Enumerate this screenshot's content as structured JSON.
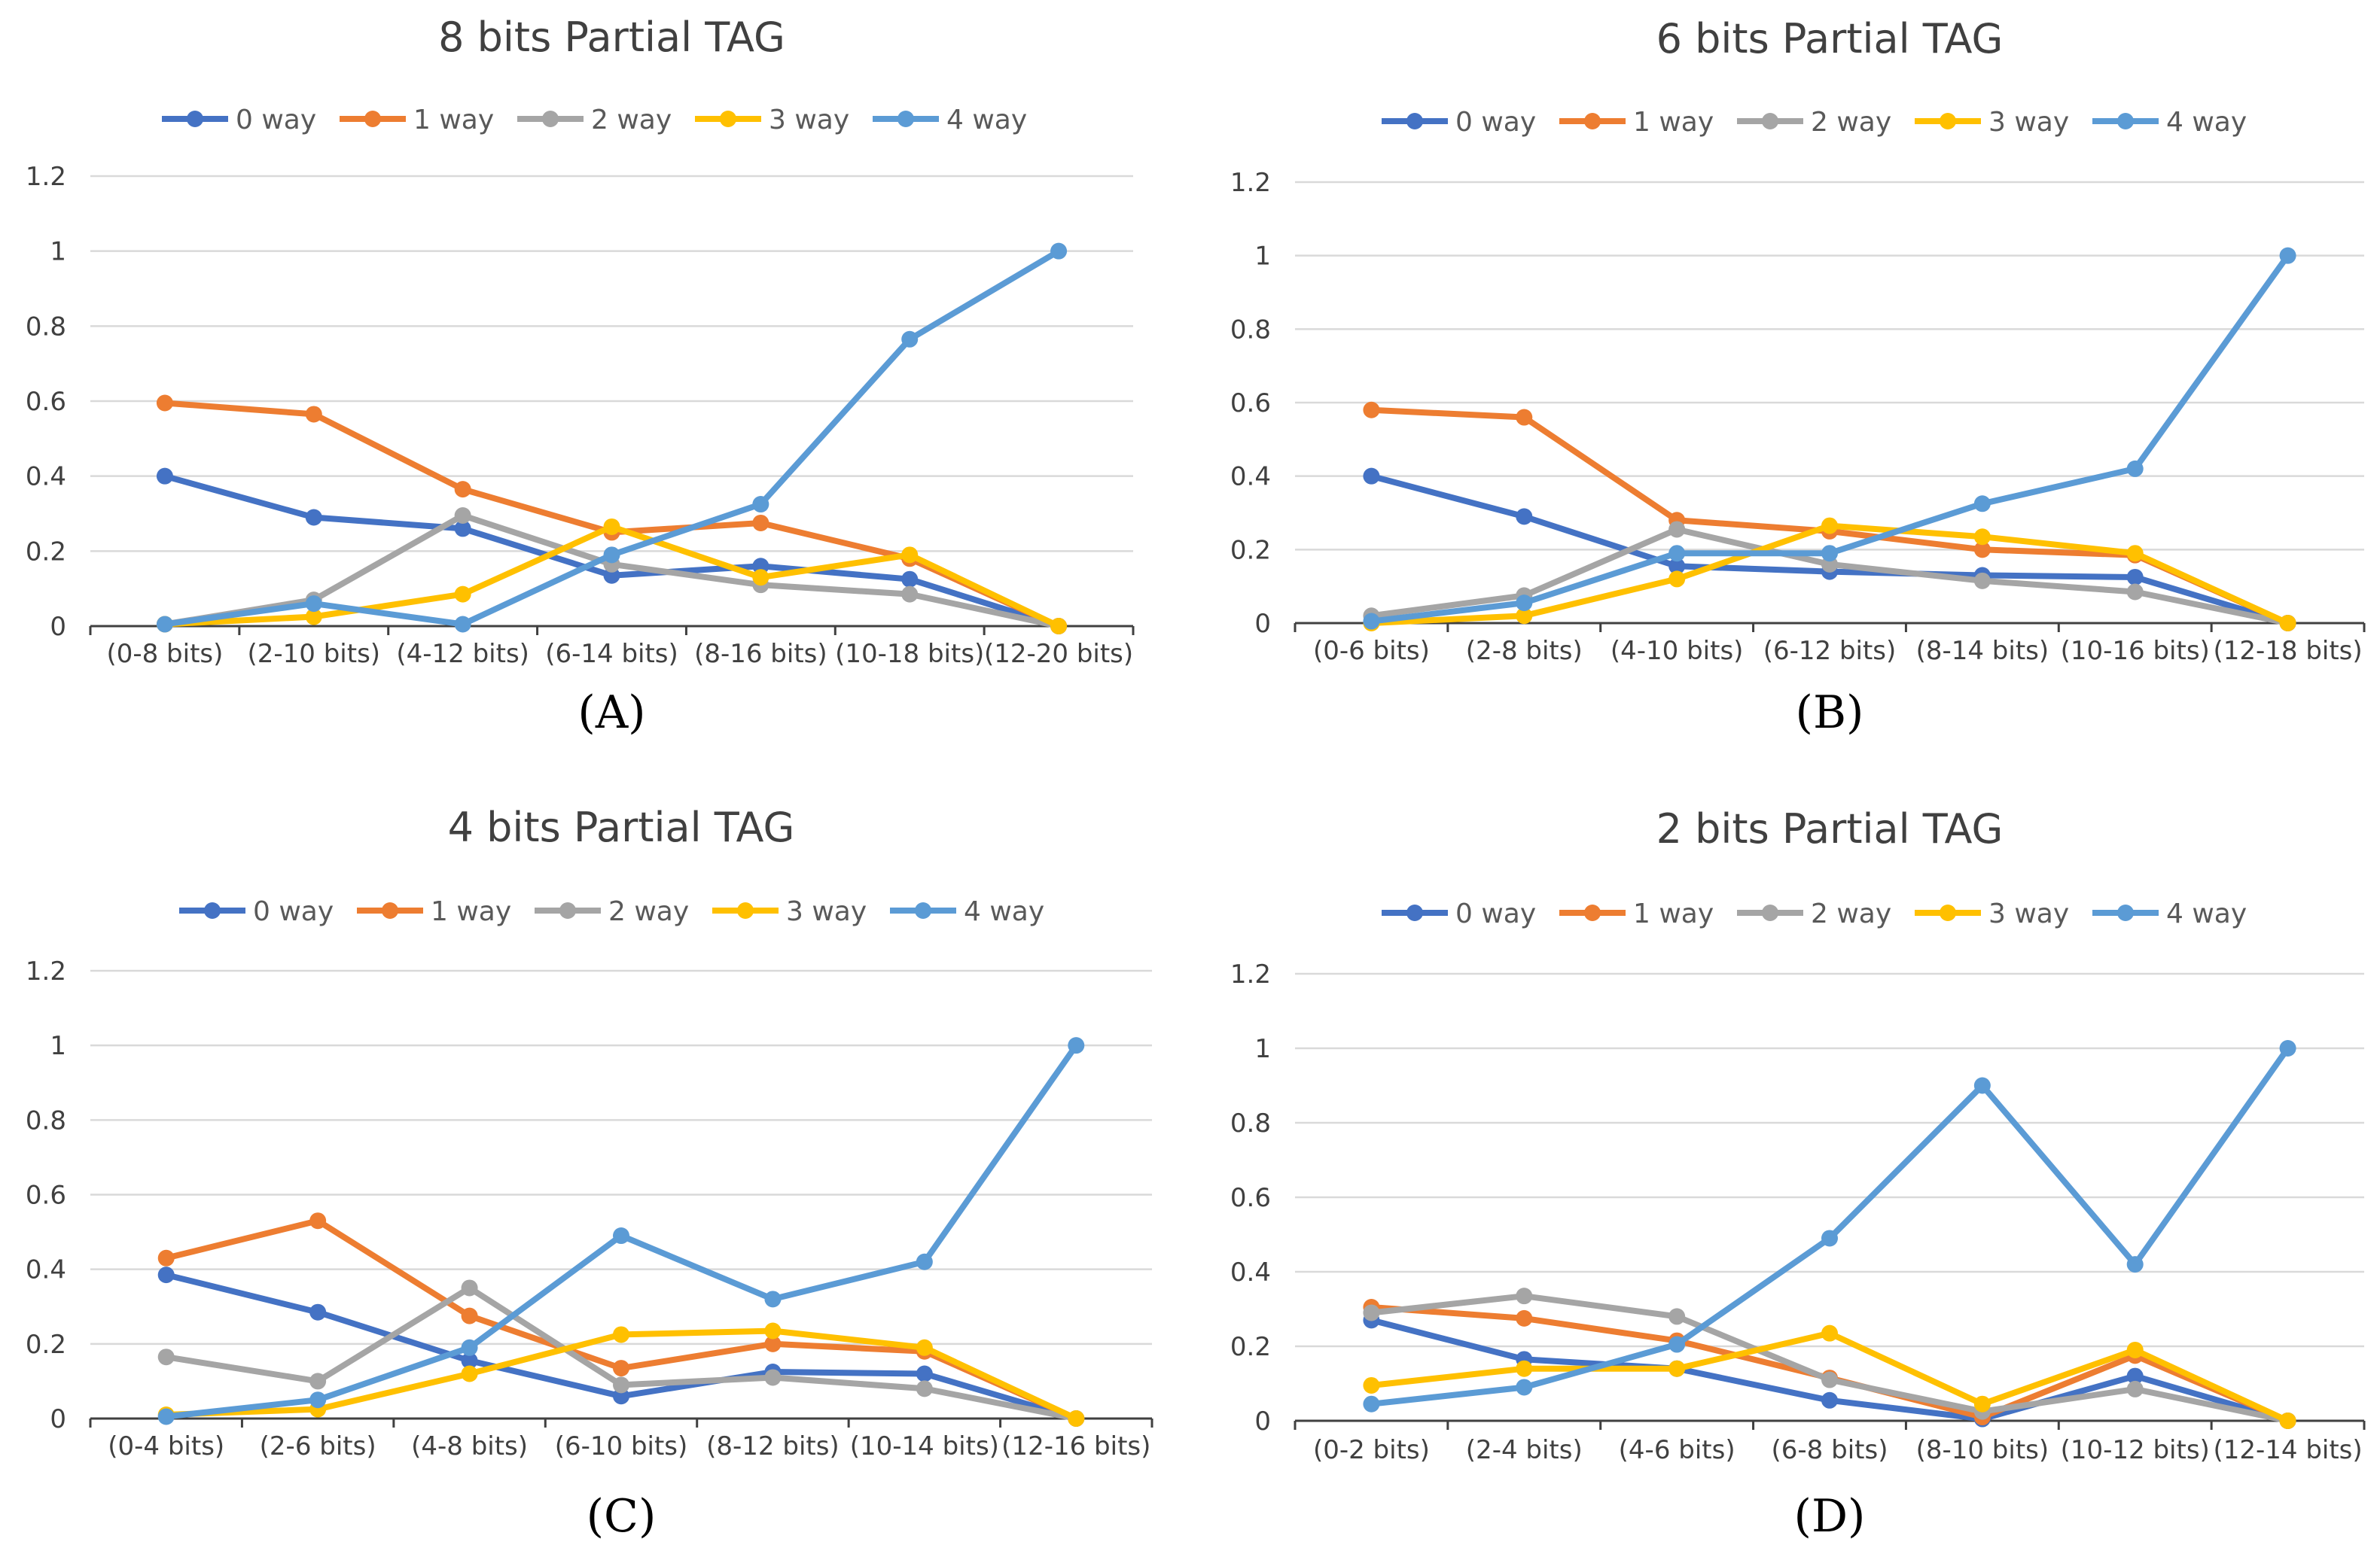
{
  "colors": {
    "0 way": "#4472c4",
    "1 way": "#ed7d31",
    "2 way": "#a5a5a5",
    "3 way": "#ffc000",
    "4 way": "#5b9bd5"
  },
  "chart_data": [
    {
      "type": "line",
      "panel_label": "(A)",
      "title": "8 bits Partial TAG",
      "categories": [
        "(0-8 bits)",
        "(2-10 bits)",
        "(4-12 bits)",
        "(6-14 bits)",
        "(8-16 bits)",
        "(10-18 bits)",
        "(12-20 bits)"
      ],
      "ylim": [
        0,
        1.2
      ],
      "yticks": [
        "0",
        "0.2",
        "0.4",
        "0.6",
        "0.8",
        "1",
        "1.2"
      ],
      "legend_position": "top",
      "series": [
        {
          "name": "0 way",
          "values": [
            0.4,
            0.29,
            0.26,
            0.135,
            0.16,
            0.125,
            0
          ]
        },
        {
          "name": "1 way",
          "values": [
            0.595,
            0.565,
            0.365,
            0.25,
            0.275,
            0.18,
            0
          ]
        },
        {
          "name": "2 way",
          "values": [
            0.005,
            0.07,
            0.295,
            0.165,
            0.11,
            0.085,
            0
          ]
        },
        {
          "name": "3 way",
          "values": [
            0.005,
            0.025,
            0.085,
            0.265,
            0.13,
            0.19,
            0
          ]
        },
        {
          "name": "4 way",
          "values": [
            0.005,
            0.06,
            0.005,
            0.19,
            0.325,
            0.765,
            1.0
          ]
        }
      ]
    },
    {
      "type": "line",
      "panel_label": "(B)",
      "title": "6 bits Partial TAG",
      "categories": [
        "(0-6 bits)",
        "(2-8 bits)",
        "(4-10 bits)",
        "(6-12 bits)",
        "(8-14 bits)",
        "(10-16 bits)",
        "(12-18 bits)"
      ],
      "ylim": [
        0,
        1.2
      ],
      "yticks": [
        "0",
        "0.2",
        "0.4",
        "0.6",
        "0.8",
        "1",
        "1.2"
      ],
      "legend_position": "top",
      "series": [
        {
          "name": "0 way",
          "values": [
            0.4,
            0.29,
            0.155,
            0.14,
            0.13,
            0.125,
            0
          ]
        },
        {
          "name": "1 way",
          "values": [
            0.58,
            0.56,
            0.28,
            0.25,
            0.2,
            0.185,
            0
          ]
        },
        {
          "name": "2 way",
          "values": [
            0.02,
            0.075,
            0.255,
            0.16,
            0.115,
            0.085,
            0
          ]
        },
        {
          "name": "3 way",
          "values": [
            0.0,
            0.02,
            0.12,
            0.265,
            0.235,
            0.19,
            0
          ]
        },
        {
          "name": "4 way",
          "values": [
            0.005,
            0.055,
            0.19,
            0.19,
            0.325,
            0.42,
            1.0
          ]
        }
      ]
    },
    {
      "type": "line",
      "panel_label": "(C)",
      "title": "4 bits Partial TAG",
      "categories": [
        "(0-4 bits)",
        "(2-6 bits)",
        "(4-8 bits)",
        "(6-10 bits)",
        "(8-12 bits)",
        "(10-14 bits)",
        "(12-16 bits)"
      ],
      "ylim": [
        0,
        1.2
      ],
      "yticks": [
        "0",
        "0.2",
        "0.4",
        "0.6",
        "0.8",
        "1",
        "1.2"
      ],
      "legend_position": "top",
      "series": [
        {
          "name": "0 way",
          "values": [
            0.385,
            0.285,
            0.155,
            0.06,
            0.125,
            0.12,
            0
          ]
        },
        {
          "name": "1 way",
          "values": [
            0.43,
            0.53,
            0.275,
            0.135,
            0.2,
            0.18,
            0
          ]
        },
        {
          "name": "2 way",
          "values": [
            0.165,
            0.1,
            0.35,
            0.09,
            0.11,
            0.08,
            0
          ]
        },
        {
          "name": "3 way",
          "values": [
            0.01,
            0.025,
            0.12,
            0.225,
            0.235,
            0.19,
            0
          ]
        },
        {
          "name": "4 way",
          "values": [
            0.005,
            0.05,
            0.19,
            0.49,
            0.32,
            0.42,
            1.0
          ]
        }
      ]
    },
    {
      "type": "line",
      "panel_label": "(D)",
      "title": "2 bits Partial TAG",
      "categories": [
        "(0-2 bits)",
        "(2-4 bits)",
        "(4-6 bits)",
        "(6-8 bits)",
        "(8-10 bits)",
        "(10-12 bits)",
        "(12-14 bits)"
      ],
      "ylim": [
        0,
        1.2
      ],
      "yticks": [
        "0",
        "0.2",
        "0.4",
        "0.6",
        "0.8",
        "1",
        "1.2"
      ],
      "legend_position": "top",
      "series": [
        {
          "name": "0 way",
          "values": [
            0.27,
            0.165,
            0.14,
            0.055,
            0.005,
            0.12,
            0
          ]
        },
        {
          "name": "1 way",
          "values": [
            0.305,
            0.275,
            0.215,
            0.115,
            0.01,
            0.175,
            0
          ]
        },
        {
          "name": "2 way",
          "values": [
            0.29,
            0.335,
            0.28,
            0.11,
            0.025,
            0.085,
            0
          ]
        },
        {
          "name": "3 way",
          "values": [
            0.095,
            0.14,
            0.14,
            0.235,
            0.045,
            0.19,
            0
          ]
        },
        {
          "name": "4 way",
          "values": [
            0.045,
            0.09,
            0.205,
            0.49,
            0.9,
            0.42,
            1.0
          ]
        }
      ]
    }
  ]
}
